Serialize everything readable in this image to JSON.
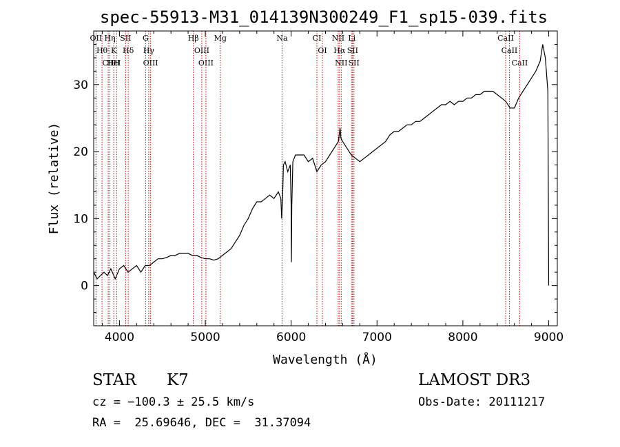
{
  "chart_data": {
    "type": "line",
    "title": "spec-55913-M31_014139N300249_F1_sp15-039.fits",
    "xlabel": "Wavelength (Å)",
    "ylabel": "Flux (relative)",
    "xlim": [
      3700,
      9100
    ],
    "ylim": [
      -6,
      38
    ],
    "xticks": [
      4000,
      5000,
      6000,
      7000,
      8000,
      9000
    ],
    "yticks": [
      0,
      10,
      20,
      30
    ],
    "grid": false,
    "line_color": "#000000",
    "marker_color": "#cc0000",
    "series": [
      {
        "points": [
          [
            3700,
            2.0
          ],
          [
            3740,
            1.0
          ],
          [
            3780,
            1.5
          ],
          [
            3820,
            2.0
          ],
          [
            3860,
            1.5
          ],
          [
            3900,
            2.5
          ],
          [
            3950,
            1.0
          ],
          [
            4000,
            2.5
          ],
          [
            4050,
            3.0
          ],
          [
            4100,
            2.0
          ],
          [
            4150,
            2.5
          ],
          [
            4200,
            3.0
          ],
          [
            4250,
            2.0
          ],
          [
            4300,
            3.0
          ],
          [
            4350,
            3.0
          ],
          [
            4400,
            3.5
          ],
          [
            4450,
            4.0
          ],
          [
            4500,
            4.0
          ],
          [
            4550,
            4.2
          ],
          [
            4600,
            4.5
          ],
          [
            4650,
            4.5
          ],
          [
            4700,
            4.8
          ],
          [
            4750,
            4.8
          ],
          [
            4800,
            4.8
          ],
          [
            4850,
            4.5
          ],
          [
            4900,
            4.5
          ],
          [
            4950,
            4.2
          ],
          [
            5000,
            4.0
          ],
          [
            5050,
            4.0
          ],
          [
            5100,
            3.8
          ],
          [
            5150,
            4.0
          ],
          [
            5200,
            4.5
          ],
          [
            5250,
            5.0
          ],
          [
            5300,
            5.5
          ],
          [
            5350,
            6.5
          ],
          [
            5400,
            7.5
          ],
          [
            5450,
            9.0
          ],
          [
            5500,
            10.0
          ],
          [
            5550,
            11.5
          ],
          [
            5600,
            12.5
          ],
          [
            5650,
            12.5
          ],
          [
            5700,
            13.0
          ],
          [
            5750,
            13.5
          ],
          [
            5800,
            13.0
          ],
          [
            5850,
            14.0
          ],
          [
            5880,
            13.0
          ],
          [
            5890,
            10.0
          ],
          [
            5900,
            13.0
          ],
          [
            5910,
            18.0
          ],
          [
            5930,
            18.5
          ],
          [
            5960,
            17.0
          ],
          [
            5990,
            18.0
          ],
          [
            6000,
            12.0
          ],
          [
            6003,
            3.5
          ],
          [
            6008,
            12.0
          ],
          [
            6020,
            18.5
          ],
          [
            6050,
            19.5
          ],
          [
            6100,
            19.5
          ],
          [
            6150,
            19.5
          ],
          [
            6200,
            18.5
          ],
          [
            6250,
            19.0
          ],
          [
            6300,
            17.0
          ],
          [
            6350,
            18.0
          ],
          [
            6400,
            18.5
          ],
          [
            6450,
            19.5
          ],
          [
            6500,
            20.5
          ],
          [
            6550,
            21.5
          ],
          [
            6570,
            23.5
          ],
          [
            6580,
            22.0
          ],
          [
            6600,
            21.5
          ],
          [
            6650,
            20.5
          ],
          [
            6700,
            19.5
          ],
          [
            6750,
            19.0
          ],
          [
            6800,
            18.5
          ],
          [
            6850,
            19.0
          ],
          [
            6900,
            19.5
          ],
          [
            6950,
            20.0
          ],
          [
            7000,
            20.5
          ],
          [
            7050,
            21.0
          ],
          [
            7100,
            21.5
          ],
          [
            7150,
            22.5
          ],
          [
            7200,
            23.0
          ],
          [
            7250,
            23.0
          ],
          [
            7300,
            23.5
          ],
          [
            7350,
            24.0
          ],
          [
            7400,
            24.0
          ],
          [
            7450,
            24.5
          ],
          [
            7500,
            24.5
          ],
          [
            7550,
            25.0
          ],
          [
            7600,
            25.5
          ],
          [
            7650,
            26.0
          ],
          [
            7700,
            26.5
          ],
          [
            7750,
            27.0
          ],
          [
            7800,
            27.0
          ],
          [
            7850,
            27.5
          ],
          [
            7900,
            27.0
          ],
          [
            7950,
            27.5
          ],
          [
            8000,
            27.5
          ],
          [
            8050,
            28.0
          ],
          [
            8100,
            28.0
          ],
          [
            8150,
            28.5
          ],
          [
            8200,
            28.5
          ],
          [
            8250,
            29.0
          ],
          [
            8300,
            29.0
          ],
          [
            8350,
            29.0
          ],
          [
            8400,
            28.5
          ],
          [
            8450,
            28.0
          ],
          [
            8500,
            27.5
          ],
          [
            8550,
            26.5
          ],
          [
            8600,
            26.5
          ],
          [
            8650,
            28.0
          ],
          [
            8700,
            29.0
          ],
          [
            8750,
            30.0
          ],
          [
            8800,
            31.0
          ],
          [
            8850,
            32.0
          ],
          [
            8900,
            33.5
          ],
          [
            8930,
            36.0
          ],
          [
            8960,
            34.0
          ],
          [
            8990,
            29.0
          ],
          [
            9000,
            0.0
          ]
        ]
      }
    ],
    "line_markers": [
      {
        "wl": 3727,
        "labels": [
          "OII"
        ]
      },
      {
        "wl": 3797,
        "labels": [
          "Hθ"
        ]
      },
      {
        "wl": 3869,
        "labels": [
          "CII"
        ]
      },
      {
        "wl": 3889,
        "labels": [
          "Hη"
        ]
      },
      {
        "wl": 3934,
        "labels": [
          "K",
          "HeI"
        ]
      },
      {
        "wl": 3968,
        "labels": [
          "H"
        ]
      },
      {
        "wl": 4072,
        "labels": [
          "SII"
        ]
      },
      {
        "wl": 4102,
        "labels": [
          "Hδ"
        ]
      },
      {
        "wl": 4305,
        "labels": [
          "G"
        ]
      },
      {
        "wl": 4341,
        "labels": [
          "Hγ"
        ]
      },
      {
        "wl": 4363,
        "labels": [
          "OIII"
        ]
      },
      {
        "wl": 4861,
        "labels": [
          "Hβ"
        ]
      },
      {
        "wl": 4959,
        "labels": [
          "OIII"
        ]
      },
      {
        "wl": 5007,
        "labels": [
          "OIII"
        ]
      },
      {
        "wl": 5175,
        "labels": [
          "Mg"
        ]
      },
      {
        "wl": 5894,
        "labels": [
          "Na"
        ]
      },
      {
        "wl": 6300,
        "labels": [
          "CI"
        ]
      },
      {
        "wl": 6364,
        "labels": [
          "OI"
        ]
      },
      {
        "wl": 6548,
        "labels": [
          "NII"
        ]
      },
      {
        "wl": 6563,
        "labels": [
          "Hα"
        ]
      },
      {
        "wl": 6583,
        "labels": [
          "NII"
        ]
      },
      {
        "wl": 6707,
        "labels": [
          "Li"
        ]
      },
      {
        "wl": 6716,
        "labels": [
          "SII"
        ]
      },
      {
        "wl": 6731,
        "labels": [
          "SII"
        ]
      },
      {
        "wl": 8498,
        "labels": [
          "CaII"
        ]
      },
      {
        "wl": 8542,
        "labels": [
          "CaII"
        ]
      },
      {
        "wl": 8662,
        "labels": [
          "CaII"
        ]
      }
    ]
  },
  "info": {
    "class": "STAR",
    "subclass": "K7",
    "survey": "LAMOST DR3",
    "velocity": "cz = −100.3 ± 25.5 km/s",
    "obs_date": "Obs-Date: 20111217",
    "coords": "RA =  25.69646, DEC =  31.37094"
  }
}
